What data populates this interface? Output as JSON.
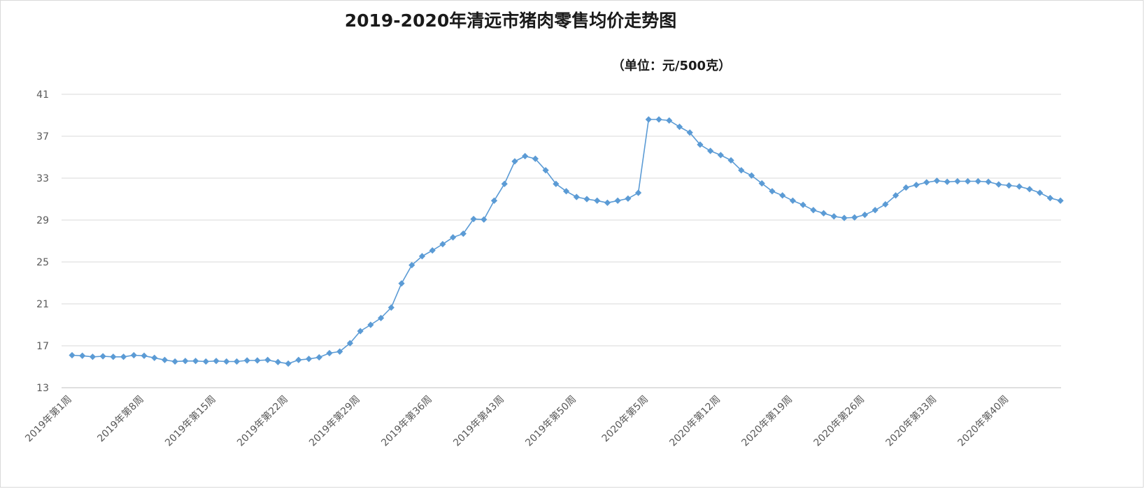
{
  "chart_data": {
    "type": "line",
    "title": "2019-2020年清远市猪肉零售均价走势图",
    "subtitle": "（单位：元/500克）",
    "ylim": [
      13,
      41
    ],
    "yticks": [
      13,
      17,
      21,
      25,
      29,
      33,
      37,
      41
    ],
    "grid": true,
    "legend": "none",
    "colors": {
      "line": "#5b9bd5",
      "grid": "#d9d9d9",
      "axis": "#bfbfbf"
    },
    "x_tick_labels": [
      "2019年第1周",
      "2019年第8周",
      "2019年第15周",
      "2019年第22周",
      "2019年第29周",
      "2019年第36周",
      "2019年第43周",
      "2019年第50周",
      "2020年第5周",
      "2020年第12周",
      "2020年第19周",
      "2020年第26周",
      "2020年第33周",
      "2020年第40周"
    ],
    "x_tick_step": 7,
    "series": [
      {
        "values": [
          16.1,
          16.05,
          15.95,
          16.0,
          15.95,
          15.95,
          16.1,
          16.05,
          15.85,
          15.65,
          15.5,
          15.55,
          15.55,
          15.5,
          15.55,
          15.5,
          15.5,
          15.6,
          15.6,
          15.65,
          15.45,
          15.3,
          15.65,
          15.75,
          15.9,
          16.3,
          16.45,
          17.25,
          18.4,
          19.0,
          19.65,
          20.65,
          22.95,
          24.7,
          25.55,
          26.1,
          26.7,
          27.35,
          27.7,
          29.1,
          29.05,
          30.85,
          32.45,
          34.6,
          35.1,
          34.85,
          33.75,
          32.45,
          31.75,
          31.2,
          31.0,
          30.85,
          30.65,
          30.85,
          31.05,
          31.6,
          38.6,
          38.6,
          38.5,
          37.9,
          37.35,
          36.2,
          35.6,
          35.2,
          34.7,
          33.75,
          33.25,
          32.5,
          31.75,
          31.35,
          30.85,
          30.45,
          29.95,
          29.65,
          29.35,
          29.2,
          29.25,
          29.5,
          29.95,
          30.5,
          31.35,
          32.1,
          32.35,
          32.6,
          32.75,
          32.65,
          32.7,
          32.7,
          32.7,
          32.65,
          32.4,
          32.3,
          32.2,
          31.95,
          31.6,
          31.1,
          30.85
        ]
      }
    ]
  }
}
